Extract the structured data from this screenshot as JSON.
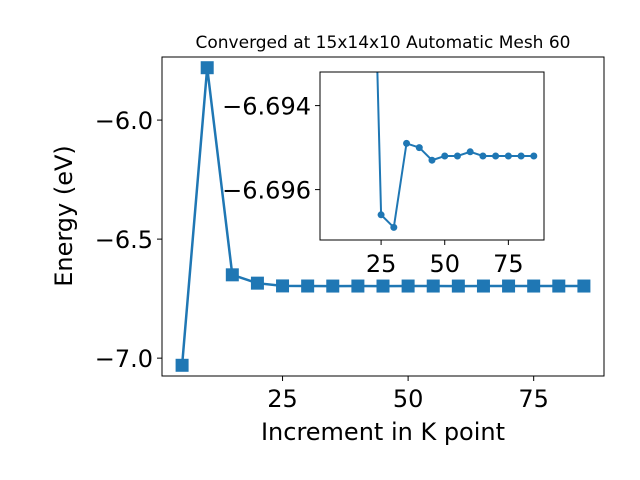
{
  "chart_data": [
    {
      "type": "line",
      "title": "Converged at 15x14x10 Automatic Mesh 60",
      "xlabel": "Increment in K point",
      "ylabel": "Energy (eV)",
      "xlim": [
        1.0,
        89.0
      ],
      "ylim": [
        -7.075,
        -5.735
      ],
      "xticks": [
        25,
        50,
        75
      ],
      "xtick_labels": [
        "25",
        "50",
        "75"
      ],
      "yticks": [
        -7.0,
        -6.5,
        -6.0
      ],
      "ytick_labels": [
        "−7.0",
        "−6.5",
        "−6.0"
      ],
      "marker": "square",
      "color": "#1f77b4",
      "grid": false,
      "x": [
        5,
        10,
        15,
        20,
        25,
        30,
        35,
        40,
        45,
        50,
        55,
        60,
        65,
        70,
        75,
        80,
        85
      ],
      "y": [
        -7.03,
        -5.78,
        -6.65,
        -6.685,
        -6.6966,
        -6.697,
        -6.6972,
        -6.6971,
        -6.6972,
        -6.6971,
        -6.6971,
        -6.6972,
        -6.6971,
        -6.6971,
        -6.6971,
        -6.6971,
        -6.6971
      ]
    },
    {
      "type": "line",
      "role": "inset",
      "xlim": [
        1.0,
        89.0
      ],
      "ylim": [
        -6.6932,
        -6.6972
      ],
      "xticks": [
        25,
        50,
        75
      ],
      "xtick_labels": [
        "25",
        "50",
        "75"
      ],
      "yticks": [
        -6.696,
        -6.694
      ],
      "ytick_labels": [
        "−6.696",
        "−6.694"
      ],
      "marker": "circle",
      "color": "#1f77b4",
      "grid": false,
      "x": [
        25,
        30,
        35,
        40,
        45,
        50,
        55,
        60,
        65,
        70,
        75,
        80,
        85
      ],
      "y": [
        -6.6966,
        -6.6969,
        -6.6949,
        -6.695,
        -6.6953,
        -6.6952,
        -6.6952,
        -6.6951,
        -6.6952,
        -6.6952,
        -6.6952,
        -6.6952,
        -6.6952
      ]
    }
  ]
}
